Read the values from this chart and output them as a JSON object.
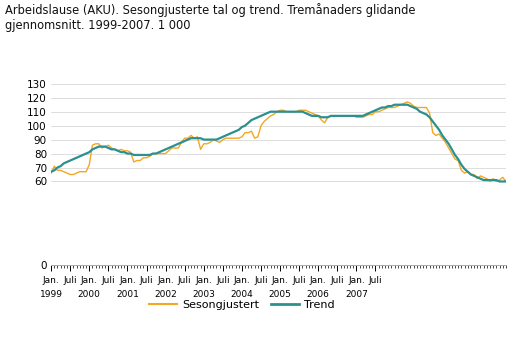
{
  "title": "Arbeidslause (AKU). Sesongjusterte tal og trend. Tremånaders glidande\ngjennomsnitt. 1999-2007. 1 000",
  "ylim": [
    0,
    130
  ],
  "yticks": [
    0,
    60,
    70,
    80,
    90,
    100,
    110,
    120,
    130
  ],
  "sesongjustert_color": "#f5a623",
  "trend_color": "#2a9090",
  "legend_sesongjustert": "Sesongjustert",
  "legend_trend": "Trend",
  "background_color": "#ffffff",
  "grid_color": "#d0d0d0",
  "sesongjustert": [
    66,
    71,
    68,
    68,
    67,
    66,
    65,
    65,
    66,
    67,
    67,
    67,
    72,
    86,
    87,
    87,
    84,
    85,
    86,
    84,
    83,
    82,
    83,
    82,
    82,
    81,
    74,
    75,
    75,
    77,
    77,
    78,
    80,
    80,
    80,
    80,
    80,
    82,
    84,
    84,
    84,
    88,
    91,
    91,
    93,
    91,
    92,
    83,
    87,
    87,
    88,
    90,
    89,
    88,
    90,
    91,
    91,
    91,
    91,
    91,
    92,
    95,
    95,
    96,
    91,
    92,
    100,
    103,
    105,
    107,
    108,
    110,
    111,
    111,
    110,
    110,
    110,
    110,
    111,
    111,
    111,
    110,
    109,
    108,
    107,
    104,
    102,
    106,
    107,
    107,
    107,
    107,
    107,
    107,
    107,
    107,
    106,
    106,
    106,
    107,
    108,
    108,
    110,
    110,
    111,
    112,
    113,
    113,
    113,
    114,
    115,
    116,
    117,
    116,
    114,
    113,
    113,
    113,
    113,
    109,
    95,
    93,
    94,
    91,
    88,
    84,
    80,
    76,
    75,
    68,
    66,
    67,
    65,
    65,
    62,
    64,
    63,
    62,
    60,
    62,
    60,
    61,
    63,
    60
  ],
  "trend": [
    67,
    68,
    70,
    71,
    73,
    74,
    75,
    76,
    77,
    78,
    79,
    80,
    81,
    83,
    84,
    85,
    85,
    85,
    84,
    83,
    83,
    82,
    81,
    81,
    80,
    80,
    79,
    79,
    79,
    79,
    79,
    79,
    80,
    80,
    81,
    82,
    83,
    84,
    85,
    86,
    87,
    88,
    89,
    90,
    91,
    91,
    91,
    91,
    90,
    90,
    90,
    90,
    90,
    91,
    92,
    93,
    94,
    95,
    96,
    97,
    99,
    100,
    102,
    104,
    105,
    106,
    107,
    108,
    109,
    110,
    110,
    110,
    110,
    110,
    110,
    110,
    110,
    110,
    110,
    110,
    109,
    108,
    107,
    107,
    107,
    106,
    106,
    106,
    107,
    107,
    107,
    107,
    107,
    107,
    107,
    107,
    107,
    107,
    107,
    108,
    109,
    110,
    111,
    112,
    113,
    113,
    114,
    114,
    115,
    115,
    115,
    115,
    115,
    114,
    113,
    112,
    110,
    109,
    108,
    106,
    103,
    100,
    97,
    93,
    90,
    87,
    83,
    79,
    76,
    72,
    69,
    67,
    65,
    64,
    63,
    62,
    61,
    61,
    61,
    61,
    61,
    60,
    60,
    60
  ]
}
